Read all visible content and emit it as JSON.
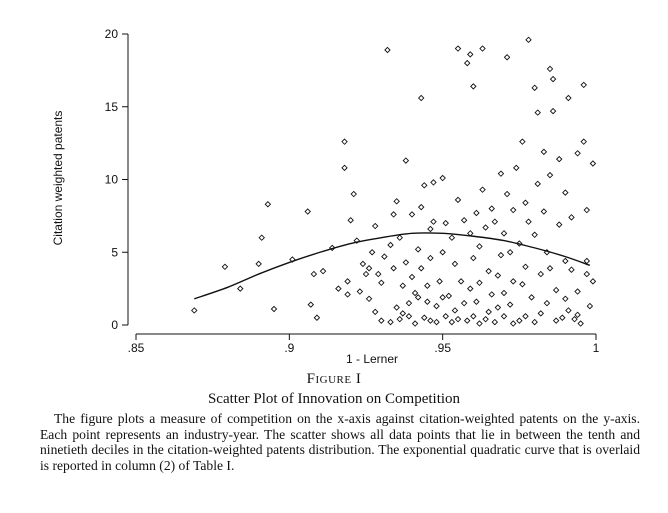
{
  "chart_data": {
    "type": "scatter",
    "xlabel": "1 - Lerner",
    "ylabel": "Citation weighted patents",
    "xlim": [
      0.85,
      1.0
    ],
    "ylim": [
      0,
      20
    ],
    "xticks": [
      0.85,
      0.9,
      0.95,
      1.0
    ],
    "xtick_labels": [
      ".85",
      ".9",
      ".95",
      "1"
    ],
    "yticks": [
      0,
      5,
      10,
      15,
      20
    ],
    "ytick_labels": [
      "0",
      "5",
      "10",
      "15",
      "20"
    ],
    "grid": false,
    "marker": "hollow-diamond",
    "points": [
      [
        0.869,
        1.0
      ],
      [
        0.879,
        4.0
      ],
      [
        0.884,
        2.5
      ],
      [
        0.89,
        4.2
      ],
      [
        0.891,
        6.0
      ],
      [
        0.893,
        8.3
      ],
      [
        0.895,
        1.1
      ],
      [
        0.901,
        4.5
      ],
      [
        0.906,
        7.8
      ],
      [
        0.907,
        1.4
      ],
      [
        0.908,
        3.5
      ],
      [
        0.909,
        0.5
      ],
      [
        0.911,
        3.7
      ],
      [
        0.914,
        5.3
      ],
      [
        0.916,
        2.5
      ],
      [
        0.918,
        12.6
      ],
      [
        0.918,
        10.8
      ],
      [
        0.919,
        3.0
      ],
      [
        0.919,
        2.1
      ],
      [
        0.92,
        7.2
      ],
      [
        0.921,
        9.0
      ],
      [
        0.922,
        5.8
      ],
      [
        0.923,
        2.3
      ],
      [
        0.924,
        4.2
      ],
      [
        0.925,
        3.5
      ],
      [
        0.926,
        1.8
      ],
      [
        0.926,
        3.9
      ],
      [
        0.927,
        5.0
      ],
      [
        0.928,
        6.8
      ],
      [
        0.928,
        0.9
      ],
      [
        0.929,
        3.5
      ],
      [
        0.93,
        2.9
      ],
      [
        0.93,
        0.3
      ],
      [
        0.931,
        4.7
      ],
      [
        0.932,
        18.9
      ],
      [
        0.933,
        0.2
      ],
      [
        0.933,
        5.5
      ],
      [
        0.934,
        7.6
      ],
      [
        0.934,
        3.9
      ],
      [
        0.935,
        8.5
      ],
      [
        0.935,
        1.2
      ],
      [
        0.936,
        0.4
      ],
      [
        0.936,
        6.0
      ],
      [
        0.937,
        2.7
      ],
      [
        0.937,
        0.8
      ],
      [
        0.938,
        11.3
      ],
      [
        0.938,
        4.3
      ],
      [
        0.939,
        1.5
      ],
      [
        0.939,
        0.6
      ],
      [
        0.94,
        7.6
      ],
      [
        0.94,
        3.3
      ],
      [
        0.941,
        2.2
      ],
      [
        0.941,
        0.1
      ],
      [
        0.942,
        5.2
      ],
      [
        0.942,
        1.9
      ],
      [
        0.943,
        15.6
      ],
      [
        0.943,
        8.1
      ],
      [
        0.943,
        3.9
      ],
      [
        0.944,
        9.6
      ],
      [
        0.944,
        0.5
      ],
      [
        0.945,
        2.7
      ],
      [
        0.945,
        1.6
      ],
      [
        0.946,
        6.6
      ],
      [
        0.946,
        4.6
      ],
      [
        0.946,
        0.3
      ],
      [
        0.947,
        9.8
      ],
      [
        0.947,
        7.1
      ],
      [
        0.948,
        1.3
      ],
      [
        0.948,
        0.2
      ],
      [
        0.949,
        3.0
      ],
      [
        0.95,
        10.1
      ],
      [
        0.95,
        5.0
      ],
      [
        0.95,
        1.9
      ],
      [
        0.951,
        7.0
      ],
      [
        0.951,
        0.6
      ],
      [
        0.952,
        2.0
      ],
      [
        0.953,
        6.0
      ],
      [
        0.953,
        0.2
      ],
      [
        0.954,
        4.2
      ],
      [
        0.954,
        1.0
      ],
      [
        0.955,
        19.0
      ],
      [
        0.955,
        8.6
      ],
      [
        0.955,
        0.4
      ],
      [
        0.956,
        3.0
      ],
      [
        0.957,
        7.2
      ],
      [
        0.957,
        1.5
      ],
      [
        0.958,
        18.0
      ],
      [
        0.958,
        0.3
      ],
      [
        0.959,
        18.6
      ],
      [
        0.959,
        6.3
      ],
      [
        0.959,
        2.5
      ],
      [
        0.96,
        16.4
      ],
      [
        0.96,
        0.6
      ],
      [
        0.96,
        4.6
      ],
      [
        0.961,
        7.7
      ],
      [
        0.961,
        1.6
      ],
      [
        0.962,
        5.4
      ],
      [
        0.962,
        2.9
      ],
      [
        0.962,
        0.1
      ],
      [
        0.963,
        19.0
      ],
      [
        0.963,
        9.3
      ],
      [
        0.964,
        6.7
      ],
      [
        0.964,
        0.4
      ],
      [
        0.965,
        3.7
      ],
      [
        0.965,
        0.9
      ],
      [
        0.966,
        8.0
      ],
      [
        0.966,
        2.1
      ],
      [
        0.967,
        7.1
      ],
      [
        0.967,
        0.2
      ],
      [
        0.968,
        3.4
      ],
      [
        0.968,
        1.2
      ],
      [
        0.969,
        10.4
      ],
      [
        0.969,
        4.8
      ],
      [
        0.97,
        6.3
      ],
      [
        0.97,
        2.2
      ],
      [
        0.97,
        0.6
      ],
      [
        0.971,
        18.4
      ],
      [
        0.971,
        9.0
      ],
      [
        0.972,
        5.0
      ],
      [
        0.972,
        1.4
      ],
      [
        0.973,
        7.9
      ],
      [
        0.973,
        3.0
      ],
      [
        0.973,
        0.1
      ],
      [
        0.974,
        10.8
      ],
      [
        0.975,
        5.6
      ],
      [
        0.975,
        0.3
      ],
      [
        0.976,
        12.6
      ],
      [
        0.976,
        2.8
      ],
      [
        0.977,
        8.4
      ],
      [
        0.977,
        4.0
      ],
      [
        0.977,
        0.6
      ],
      [
        0.978,
        19.6
      ],
      [
        0.978,
        7.1
      ],
      [
        0.979,
        1.9
      ],
      [
        0.98,
        16.3
      ],
      [
        0.98,
        6.2
      ],
      [
        0.98,
        0.2
      ],
      [
        0.981,
        14.6
      ],
      [
        0.981,
        9.7
      ],
      [
        0.982,
        3.5
      ],
      [
        0.982,
        0.8
      ],
      [
        0.983,
        11.9
      ],
      [
        0.983,
        7.8
      ],
      [
        0.984,
        5.0
      ],
      [
        0.984,
        1.5
      ],
      [
        0.985,
        17.6
      ],
      [
        0.985,
        10.3
      ],
      [
        0.985,
        3.9
      ],
      [
        0.986,
        16.9
      ],
      [
        0.986,
        14.7
      ],
      [
        0.987,
        2.4
      ],
      [
        0.987,
        0.3
      ],
      [
        0.988,
        11.4
      ],
      [
        0.988,
        6.9
      ],
      [
        0.989,
        0.5
      ],
      [
        0.99,
        9.1
      ],
      [
        0.99,
        4.4
      ],
      [
        0.99,
        1.8
      ],
      [
        0.991,
        15.6
      ],
      [
        0.991,
        1.0
      ],
      [
        0.992,
        7.4
      ],
      [
        0.992,
        3.8
      ],
      [
        0.993,
        0.4
      ],
      [
        0.994,
        11.8
      ],
      [
        0.994,
        2.3
      ],
      [
        0.995,
        0.1
      ],
      [
        0.996,
        16.5
      ],
      [
        0.997,
        7.9
      ],
      [
        0.997,
        4.4
      ],
      [
        0.998,
        1.3
      ],
      [
        0.999,
        11.1
      ],
      [
        0.999,
        3.0
      ],
      [
        0.994,
        0.7
      ],
      [
        0.996,
        12.6
      ],
      [
        0.997,
        3.5
      ]
    ],
    "fitted_curve": {
      "points": [
        [
          0.869,
          1.8
        ],
        [
          0.88,
          2.6
        ],
        [
          0.89,
          3.5
        ],
        [
          0.9,
          4.3
        ],
        [
          0.91,
          5.0
        ],
        [
          0.92,
          5.6
        ],
        [
          0.93,
          6.0
        ],
        [
          0.94,
          6.3
        ],
        [
          0.95,
          6.3
        ],
        [
          0.96,
          6.1
        ],
        [
          0.97,
          5.8
        ],
        [
          0.98,
          5.3
        ],
        [
          0.99,
          4.7
        ],
        [
          0.998,
          4.1
        ]
      ]
    }
  },
  "caption": {
    "label": "Figure I",
    "title": "Scatter Plot of Innovation on Competition",
    "text": "The figure plots a measure of competition on the x-axis against citation-weighted patents on the y-axis. Each point represents an industry-year. The scatter shows all data points that lie in between the tenth and ninetieth deciles in the citation-weighted patents distribution. The exponential quadratic curve that is overlaid is reported in column (2) of Table I."
  }
}
